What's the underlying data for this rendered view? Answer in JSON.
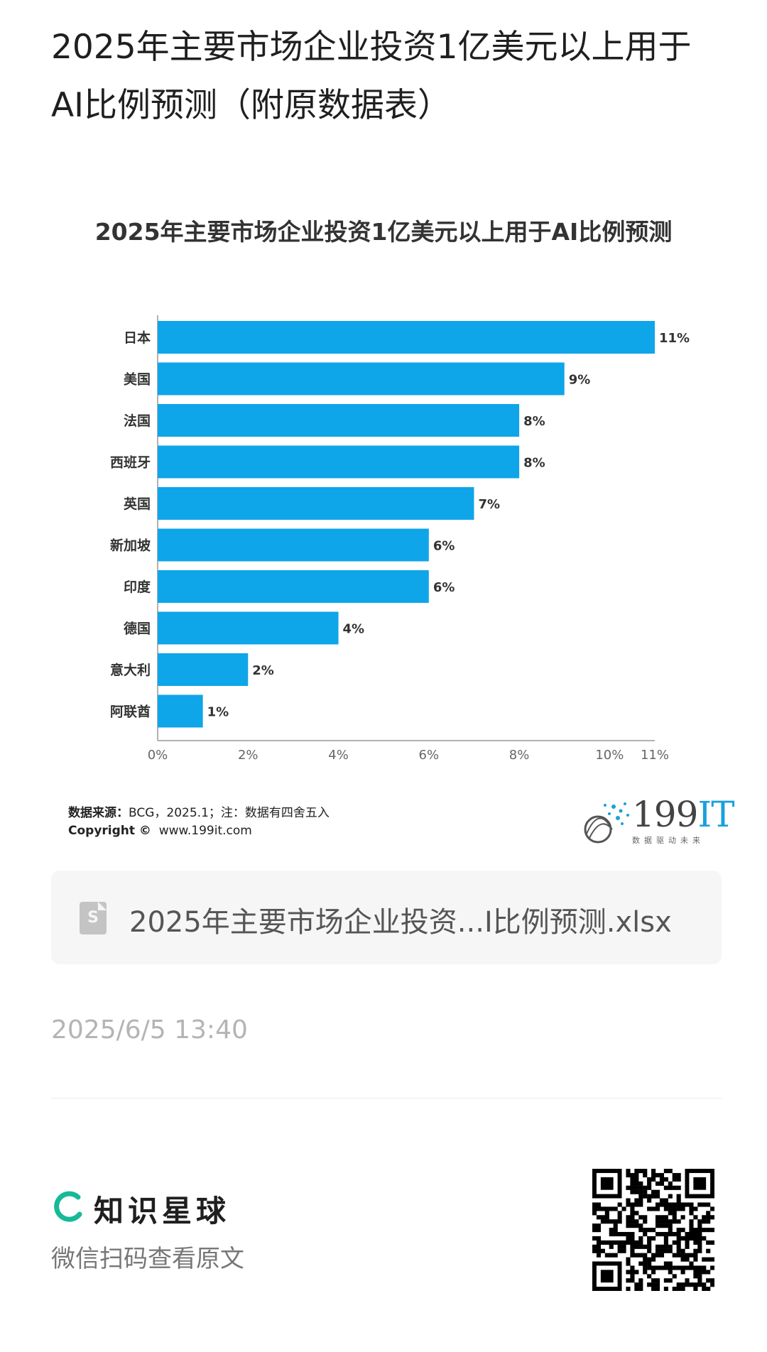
{
  "post": {
    "title": "2025年主要市场企业投资1亿美元以上用于AI比例预测（附原数据表）",
    "timestamp": "2025/6/5 13:40"
  },
  "chart": {
    "source_label": "数据来源：",
    "source_text": "BCG，2025.1；注：数据有四舍五入",
    "copyright_label": "Copyright ©",
    "copyright_text": "www.199it.com"
  },
  "brand": {
    "name_num": "199",
    "name_it": "IT",
    "slogan": "数据驱动未来"
  },
  "file": {
    "icon_letter": "S",
    "name": "2025年主要市场企业投资...I比例预测.xlsx"
  },
  "footer": {
    "planet_name": "知识星球",
    "scan_hint": "微信扫码查看原文"
  },
  "colors": {
    "bar": "#0ea5e9",
    "axis": "#999999",
    "label": "#333333",
    "tick": "#666666",
    "brand_accent": "#1aa0db",
    "planet_green": "#16b998"
  },
  "chart_data": {
    "type": "bar",
    "orientation": "horizontal",
    "title": "2025年主要市场企业投资1亿美元以上用于AI比例预测",
    "categories": [
      "日本",
      "美国",
      "法国",
      "西班牙",
      "英国",
      "新加坡",
      "印度",
      "德国",
      "意大利",
      "阿联酋"
    ],
    "values": [
      11,
      9,
      8,
      8,
      7,
      6,
      6,
      4,
      2,
      1
    ],
    "value_labels": [
      "11%",
      "9%",
      "8%",
      "8%",
      "7%",
      "6%",
      "6%",
      "4%",
      "2%",
      "1%"
    ],
    "xticks": [
      0,
      2,
      4,
      6,
      8,
      10,
      11
    ],
    "xtick_labels": [
      "0%",
      "2%",
      "4%",
      "6%",
      "8%",
      "10%",
      "11%"
    ],
    "xlim": [
      0,
      11
    ],
    "grid": false,
    "legend": "none"
  }
}
